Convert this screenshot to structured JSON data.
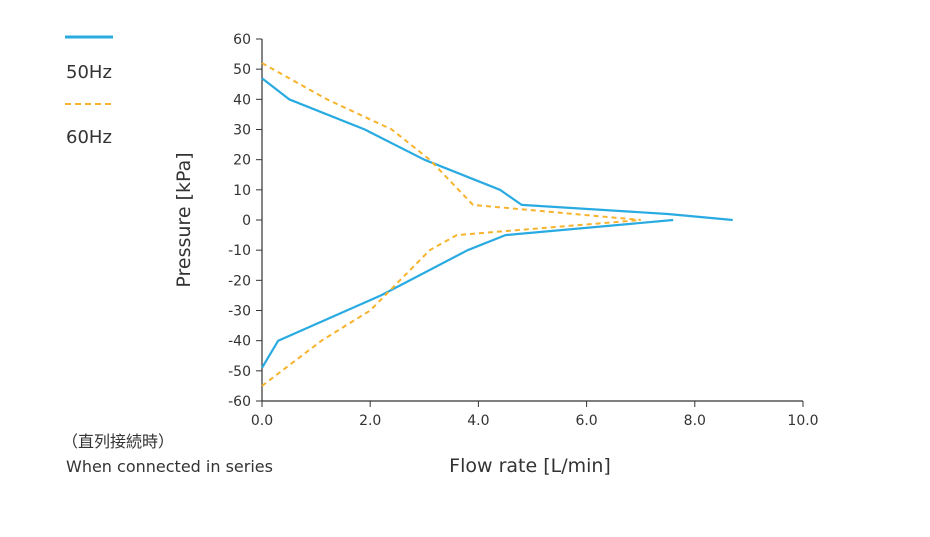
{
  "chart_data": {
    "type": "line",
    "xlabel": "Flow rate [L/min]",
    "ylabel": "Pressure [kPa]",
    "xlim": [
      0,
      10
    ],
    "ylim": [
      -60,
      60
    ],
    "x_ticks": [
      "0.0",
      "2.0",
      "4.0",
      "6.0",
      "8.0",
      "10.0"
    ],
    "y_ticks": [
      "60",
      "50",
      "40",
      "30",
      "20",
      "10",
      "0",
      "-10",
      "-20",
      "-30",
      "-40",
      "-50",
      "-60"
    ],
    "grid": false,
    "legend_position": "top-left",
    "note_line1": "（直列接続時）",
    "note_line2": "When connected in series",
    "series": [
      {
        "name": "50Hz",
        "color": "#29abe2",
        "style": "solid",
        "segments": [
          [
            [
              0,
              47
            ],
            [
              0.5,
              40
            ],
            [
              1.9,
              30
            ],
            [
              3.0,
              20
            ],
            [
              4.4,
              10
            ],
            [
              4.8,
              5
            ],
            [
              7.5,
              2
            ],
            [
              8.7,
              0
            ]
          ],
          [
            [
              0,
              -49
            ],
            [
              0.3,
              -40
            ],
            [
              2.2,
              -25
            ],
            [
              3.8,
              -10
            ],
            [
              4.5,
              -5
            ],
            [
              7.6,
              0
            ]
          ]
        ]
      },
      {
        "name": "60Hz",
        "color": "#f7b32b",
        "style": "dashed",
        "segments": [
          [
            [
              0,
              52
            ],
            [
              1.2,
              40
            ],
            [
              2.4,
              30
            ],
            [
              3.1,
              20
            ],
            [
              3.9,
              5
            ],
            [
              7.0,
              0
            ]
          ],
          [
            [
              0,
              -55
            ],
            [
              1.1,
              -40
            ],
            [
              2.0,
              -30
            ],
            [
              3.1,
              -10
            ],
            [
              3.6,
              -5
            ],
            [
              7.0,
              0
            ]
          ]
        ]
      }
    ]
  }
}
